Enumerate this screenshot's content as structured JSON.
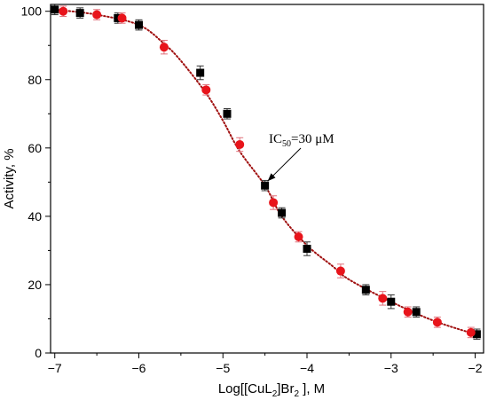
{
  "chart_data": {
    "type": "scatter",
    "title": "",
    "xlabel": {
      "prefix": "Log[[CuL",
      "sub1": "2",
      "mid": "]Br",
      "sub2": "2",
      "suffix": " ], M"
    },
    "ylabel": "Activity, %",
    "xlim": [
      -7.05,
      -1.9
    ],
    "ylim": [
      0,
      102
    ],
    "xticks": [
      -7,
      -6,
      -5,
      -4,
      -3,
      -2
    ],
    "xtick_labels": [
      "−7",
      "−6",
      "−5",
      "−4",
      "−3",
      "−2"
    ],
    "yticks": [
      0,
      20,
      40,
      60,
      80,
      100
    ],
    "ytick_labels": [
      "0",
      "20",
      "40",
      "60",
      "80",
      "100"
    ],
    "grid": false,
    "annotation": {
      "prefix": "IC",
      "sub": "50",
      "suffix": "=30 μM",
      "x": -4.5,
      "y": 49
    },
    "series": [
      {
        "marker": "square",
        "color": "#000000",
        "x": [
          -7.0,
          -6.7,
          -6.25,
          -6.0,
          -5.27,
          -4.95,
          -4.5,
          -4.3,
          -4.0,
          -3.3,
          -3.0,
          -2.7,
          -1.98
        ],
        "y": [
          100.5,
          99.5,
          98.0,
          96.0,
          82.0,
          70.0,
          49.0,
          41.0,
          30.5,
          18.5,
          15.0,
          12.0,
          5.5
        ],
        "err": [
          1.5,
          1.5,
          1.5,
          1.5,
          2.0,
          1.5,
          1.5,
          1.5,
          2.0,
          1.5,
          2.0,
          1.5,
          1.5
        ]
      },
      {
        "marker": "circle",
        "color": "#e8141b",
        "x": [
          -6.9,
          -6.5,
          -6.2,
          -5.7,
          -5.2,
          -4.8,
          -4.4,
          -4.1,
          -3.6,
          -3.1,
          -2.8,
          -2.45,
          -2.05
        ],
        "y": [
          100.0,
          99.0,
          98.0,
          89.5,
          77.0,
          61.0,
          44.0,
          34.0,
          24.0,
          16.0,
          12.0,
          9.0,
          6.0
        ],
        "err": [
          1.5,
          1.5,
          1.5,
          2.0,
          1.5,
          2.0,
          2.0,
          1.5,
          2.0,
          2.0,
          1.5,
          1.5,
          1.5
        ]
      }
    ],
    "fit_curve": {
      "color": "#a01010",
      "style": "dotted",
      "x": [
        -7.0,
        -6.5,
        -6.0,
        -5.7,
        -5.5,
        -5.2,
        -5.0,
        -4.8,
        -4.5,
        -4.3,
        -4.0,
        -3.7,
        -3.5,
        -3.0,
        -2.5,
        -2.0
      ],
      "y": [
        100.5,
        99.0,
        96.0,
        90.5,
        85.5,
        76.0,
        68.0,
        59.0,
        49.0,
        40.0,
        31.5,
        25.5,
        21.5,
        15.0,
        9.5,
        5.5
      ]
    }
  }
}
